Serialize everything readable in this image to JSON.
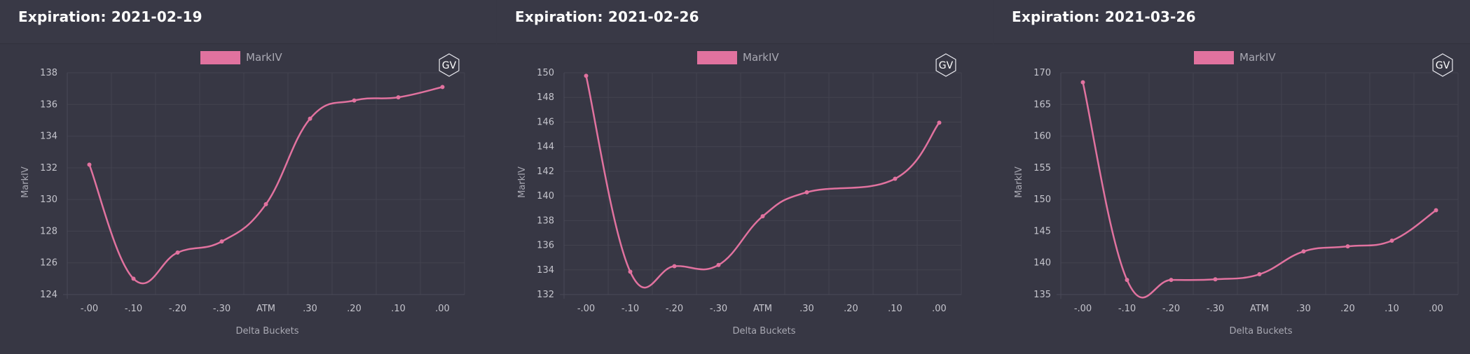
{
  "panels": [
    {
      "title": "Expiration: 2021-02-19",
      "badge": "GV",
      "chart_data": {
        "type": "line",
        "categories": [
          "-.00",
          "-.10",
          "-.20",
          "-.30",
          "ATM",
          ".30",
          ".20",
          ".10",
          ".00"
        ],
        "series": [
          {
            "name": "MarkIV",
            "color": "#e1729f",
            "values": [
              132.2,
              125.0,
              126.65,
              127.35,
              129.7,
              135.1,
              136.25,
              136.45,
              137.1
            ]
          }
        ],
        "xlabel": "Delta Buckets",
        "ylabel": "MarkIV",
        "ylim": [
          124,
          138
        ],
        "yticks": [
          124,
          126,
          128,
          130,
          132,
          134,
          136,
          138
        ],
        "grid": true,
        "legend": "top-center"
      }
    },
    {
      "title": "Expiration: 2021-02-26",
      "badge": "GV",
      "chart_data": {
        "type": "line",
        "categories": [
          "-.00",
          "-.10",
          "-.20",
          "-.30",
          "ATM",
          ".30",
          ".20",
          ".10",
          ".00"
        ],
        "series": [
          {
            "name": "MarkIV",
            "color": "#e1729f",
            "values": [
              149.75,
              133.85,
              134.3,
              134.4,
              138.35,
              140.3,
              null,
              141.4,
              145.95
            ]
          }
        ],
        "xlabel": "Delta Buckets",
        "ylabel": "MarkIV",
        "ylim": [
          132,
          150
        ],
        "yticks": [
          132,
          134,
          136,
          138,
          140,
          142,
          144,
          146,
          148,
          150
        ],
        "grid": true,
        "legend": "top-center"
      }
    },
    {
      "title": "Expiration: 2021-03-26",
      "badge": "GV",
      "chart_data": {
        "type": "line",
        "categories": [
          "-.00",
          "-.10",
          "-.20",
          "-.30",
          "ATM",
          ".30",
          ".20",
          ".10",
          ".00"
        ],
        "series": [
          {
            "name": "MarkIV",
            "color": "#e1729f",
            "values": [
              168.5,
              137.3,
              137.3,
              137.4,
              138.2,
              141.8,
              142.6,
              143.5,
              148.3
            ]
          }
        ],
        "xlabel": "Delta Buckets",
        "ylabel": "MarkIV",
        "ylim": [
          135,
          170
        ],
        "yticks": [
          135,
          140,
          145,
          150,
          155,
          160,
          165,
          170
        ],
        "grid": true,
        "legend": "top-center"
      }
    }
  ]
}
